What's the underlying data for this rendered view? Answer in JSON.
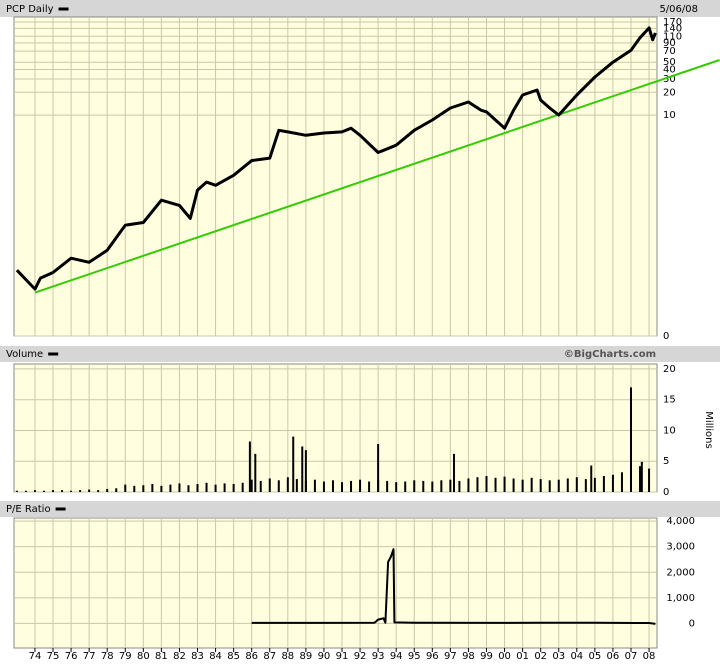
{
  "chart_data": [
    {
      "type": "line",
      "title": "PCP Daily",
      "date": "5/06/08",
      "log": true,
      "grid": true,
      "xlim": [
        1972.84,
        2008.44
      ],
      "ylim": [
        0.012,
        198
      ],
      "yticks": [
        170,
        140,
        110,
        90,
        70,
        50,
        40,
        30,
        20,
        10,
        {
          "value": 0.012,
          "label": "0"
        }
      ],
      "series": [
        {
          "name": "PCP Daily",
          "color": "#000000",
          "x": [
            1973.0,
            1974.0,
            1974.3,
            1975.0,
            1976.0,
            1977.0,
            1978.0,
            1978.8,
            1979.0,
            1980.0,
            1981.0,
            1982.0,
            1982.6,
            1983.0,
            1983.5,
            1984.0,
            1985.0,
            1986.0,
            1987.0,
            1987.5,
            1988.0,
            1989.0,
            1990.0,
            1991.0,
            1991.5,
            1992.0,
            1993.0,
            1994.0,
            1995.0,
            1996.0,
            1997.0,
            1998.0,
            1998.7,
            1999.0,
            2000.0,
            2000.5,
            2001.0,
            2001.8,
            2002.0,
            2002.5,
            2003.0,
            2004.0,
            2005.0,
            2006.0,
            2007.0,
            2007.5,
            2008.0,
            2008.2,
            2008.35
          ],
          "values": [
            0.089,
            0.05,
            0.07,
            0.083,
            0.128,
            0.113,
            0.163,
            0.3,
            0.35,
            0.38,
            0.75,
            0.64,
            0.43,
            1.02,
            1.3,
            1.18,
            1.6,
            2.5,
            2.7,
            6.3,
            6.0,
            5.4,
            5.8,
            6.0,
            6.7,
            5.4,
            3.2,
            4.0,
            6.3,
            8.6,
            12.4,
            14.9,
            11.6,
            11.0,
            6.7,
            11.6,
            18.4,
            21.4,
            15.8,
            12.4,
            10,
            18.4,
            31.9,
            50,
            72,
            105,
            142,
            99,
            122
          ]
        }
      ],
      "trendline": {
        "color": "#33cc00",
        "x": [
          1974.0,
          2011.9
        ],
        "values": [
          0.045,
          53.5
        ]
      }
    },
    {
      "type": "bar",
      "title": "Volume",
      "credit": "©BigCharts.com",
      "y_label": "Millions",
      "grid": true,
      "xlim": [
        1972.84,
        2008.44
      ],
      "ylim": [
        0,
        20.8
      ],
      "yticks": [
        0,
        5,
        10,
        15,
        20
      ],
      "series": [
        {
          "name": "Volume",
          "color": "#000000",
          "x": [
            1973,
            1973.5,
            1974,
            1974.5,
            1975,
            1975.5,
            1976,
            1976.5,
            1977,
            1977.5,
            1978,
            1978.5,
            1979,
            1979.5,
            1980,
            1980.5,
            1981,
            1981.5,
            1982,
            1982.5,
            1983,
            1983.5,
            1984,
            1984.5,
            1985,
            1985.5,
            1986,
            1986.5,
            1987,
            1987.5,
            1988,
            1988.5,
            1989,
            1989.5,
            1990,
            1990.5,
            1991,
            1991.5,
            1992,
            1992.5,
            1993,
            1993.5,
            1994,
            1994.5,
            1995,
            1995.5,
            1996,
            1996.5,
            1997,
            1997.5,
            1998,
            1998.5,
            1999,
            1999.5,
            2000,
            2000.5,
            2001,
            2001.5,
            2002,
            2002.5,
            2003,
            2003.5,
            2004,
            2004.5,
            2005,
            2005.5,
            2006,
            2006.5,
            2007,
            2007.5,
            2008,
            1985.9,
            1986.2,
            1988.3,
            1988.8,
            1989.0,
            1993.0,
            1997.2,
            2004.8,
            2007.0,
            2007.6
          ],
          "values": [
            0.2,
            0.2,
            0.3,
            0.2,
            0.3,
            0.3,
            0.2,
            0.3,
            0.4,
            0.3,
            0.5,
            0.6,
            1.2,
            1.0,
            1.1,
            1.3,
            1.0,
            1.2,
            1.4,
            1.1,
            1.3,
            1.5,
            1.2,
            1.4,
            1.3,
            1.5,
            2.0,
            1.8,
            2.2,
            1.9,
            2.4,
            2.1,
            1.8,
            2.0,
            1.7,
            1.9,
            1.6,
            1.8,
            2.0,
            1.7,
            1.9,
            1.8,
            1.6,
            1.7,
            1.9,
            1.8,
            1.7,
            1.9,
            2.0,
            1.8,
            2.2,
            2.4,
            2.6,
            2.3,
            2.5,
            2.2,
            2.0,
            2.3,
            2.1,
            1.9,
            2.0,
            2.2,
            2.4,
            2.1,
            2.3,
            2.6,
            2.8,
            3.2,
            3.6,
            4.2,
            3.8,
            8.2,
            6.2,
            9.0,
            7.4,
            6.8,
            7.8,
            6.2,
            4.3,
            17.0,
            4.9
          ]
        }
      ]
    },
    {
      "type": "line",
      "title": "P/E Ratio",
      "grid": true,
      "xlim": [
        1972.84,
        2008.44
      ],
      "ylim": [
        -960,
        4120
      ],
      "yticks": [
        {
          "value": 4000,
          "label": "4,000"
        },
        {
          "value": 3000,
          "label": "3,000"
        },
        {
          "value": 2000,
          "label": "2,000"
        },
        {
          "value": 1000,
          "label": "1,000"
        },
        0
      ],
      "xticks": [
        {
          "value": 1974,
          "label": "74"
        },
        {
          "value": 1975,
          "label": "75"
        },
        {
          "value": 1976,
          "label": "76"
        },
        {
          "value": 1977,
          "label": "77"
        },
        {
          "value": 1978,
          "label": "78"
        },
        {
          "value": 1979,
          "label": "79"
        },
        {
          "value": 1980,
          "label": "80"
        },
        {
          "value": 1981,
          "label": "81"
        },
        {
          "value": 1982,
          "label": "82"
        },
        {
          "value": 1983,
          "label": "83"
        },
        {
          "value": 1984,
          "label": "84"
        },
        {
          "value": 1985,
          "label": "85"
        },
        {
          "value": 1986,
          "label": "86"
        },
        {
          "value": 1987,
          "label": "87"
        },
        {
          "value": 1988,
          "label": "88"
        },
        {
          "value": 1989,
          "label": "89"
        },
        {
          "value": 1990,
          "label": "90"
        },
        {
          "value": 1991,
          "label": "91"
        },
        {
          "value": 1992,
          "label": "92"
        },
        {
          "value": 1993,
          "label": "93"
        },
        {
          "value": 1994,
          "label": "94"
        },
        {
          "value": 1995,
          "label": "95"
        },
        {
          "value": 1996,
          "label": "96"
        },
        {
          "value": 1997,
          "label": "97"
        },
        {
          "value": 1998,
          "label": "98"
        },
        {
          "value": 1999,
          "label": "99"
        },
        {
          "value": 2000,
          "label": "00"
        },
        {
          "value": 2001,
          "label": "01"
        },
        {
          "value": 2002,
          "label": "02"
        },
        {
          "value": 2003,
          "label": "03"
        },
        {
          "value": 2004,
          "label": "04"
        },
        {
          "value": 2005,
          "label": "05"
        },
        {
          "value": 2006,
          "label": "06"
        },
        {
          "value": 2007,
          "label": "07"
        },
        {
          "value": 2008,
          "label": "08"
        }
      ],
      "series": [
        {
          "name": "P/E Ratio",
          "color": "#000000",
          "x": [
            1986.0,
            1990.0,
            1992.8,
            1993.0,
            1993.3,
            1993.4,
            1993.55,
            1993.7,
            1993.85,
            1993.9,
            1995.0,
            2000.0,
            2002.0,
            2005.0,
            2008.0,
            2008.35
          ],
          "values": [
            20,
            20,
            30,
            150,
            200,
            30,
            2400,
            2600,
            2900,
            40,
            25,
            20,
            30,
            25,
            15,
            -20
          ]
        }
      ]
    }
  ]
}
